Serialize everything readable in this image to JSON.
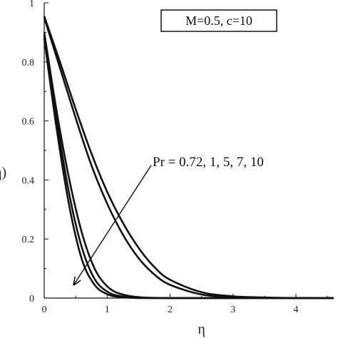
{
  "chart_data": {
    "type": "line",
    "title": "",
    "xlabel": "η",
    "ylabel": "η)",
    "xlim": [
      0,
      4.6
    ],
    "ylim": [
      0,
      1
    ],
    "xticks": [
      "0",
      "1",
      "2",
      "3",
      "4"
    ],
    "yticks": [
      "0",
      "0.2",
      "0.4",
      "0.6",
      "0.8",
      "1"
    ],
    "grid": false,
    "parameter_box": "M=0.5, c=10",
    "annotation": {
      "text": "Pr = 0.72, 1, 5, 7, 10",
      "arrow_from": [
        1.7,
        0.45
      ],
      "arrow_to": [
        0.47,
        0.045
      ]
    },
    "series": [
      {
        "x": [
          0,
          0.25,
          0.5,
          0.75,
          1.0,
          1.25,
          1.5,
          1.75,
          2.0,
          2.5,
          3.0,
          3.5,
          4.0,
          4.6
        ],
        "values": [
          0.955,
          0.8,
          0.64,
          0.49,
          0.36,
          0.255,
          0.17,
          0.105,
          0.062,
          0.02,
          0.006,
          0.002,
          0.0005,
          0
        ]
      },
      {
        "x": [
          0,
          0.25,
          0.5,
          0.75,
          1.0,
          1.25,
          1.5,
          1.75,
          2.0,
          2.5,
          3.0,
          3.5,
          4.0,
          4.6
        ],
        "values": [
          0.95,
          0.78,
          0.61,
          0.45,
          0.32,
          0.215,
          0.135,
          0.08,
          0.045,
          0.012,
          0.003,
          0.001,
          0,
          0
        ]
      },
      {
        "x": [
          0,
          0.2,
          0.4,
          0.6,
          0.8,
          1.0,
          1.2,
          1.5,
          2.0,
          3.0,
          4.6
        ],
        "values": [
          0.9,
          0.63,
          0.4,
          0.22,
          0.1,
          0.04,
          0.015,
          0.003,
          0,
          0,
          0
        ]
      },
      {
        "x": [
          0,
          0.2,
          0.4,
          0.6,
          0.8,
          1.0,
          1.2,
          1.5,
          2.0,
          3.0,
          4.6
        ],
        "values": [
          0.89,
          0.6,
          0.35,
          0.17,
          0.065,
          0.022,
          0.007,
          0.001,
          0,
          0,
          0
        ]
      },
      {
        "x": [
          0,
          0.2,
          0.4,
          0.6,
          0.8,
          1.0,
          1.2,
          1.5,
          2.0,
          3.0,
          4.6
        ],
        "values": [
          0.88,
          0.57,
          0.31,
          0.13,
          0.045,
          0.013,
          0.004,
          0,
          0,
          0,
          0
        ]
      }
    ]
  }
}
